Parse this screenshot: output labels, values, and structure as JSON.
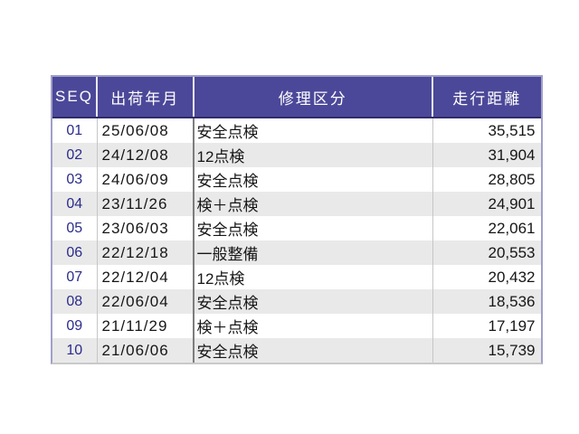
{
  "window": {
    "background": "#ffffff"
  },
  "table": {
    "title": "repair-history",
    "columns": [
      {
        "key": "seq",
        "label": "SEQ"
      },
      {
        "key": "ship_date",
        "label": "出荷年月"
      },
      {
        "key": "repair_type",
        "label": "修理区分"
      },
      {
        "key": "mileage",
        "label": "走行距離"
      }
    ],
    "rows": [
      {
        "seq": "01",
        "ship_date": "25/06/08",
        "repair_type": "安全点検",
        "mileage": "35,515"
      },
      {
        "seq": "02",
        "ship_date": "24/12/08",
        "repair_type": "12点検",
        "mileage": "31,904"
      },
      {
        "seq": "03",
        "ship_date": "24/06/09",
        "repair_type": "安全点検",
        "mileage": "28,805"
      },
      {
        "seq": "04",
        "ship_date": "23/11/26",
        "repair_type": "検＋点検",
        "mileage": "24,901"
      },
      {
        "seq": "05",
        "ship_date": "23/06/03",
        "repair_type": "安全点検",
        "mileage": "22,061"
      },
      {
        "seq": "06",
        "ship_date": "22/12/18",
        "repair_type": "一般整備",
        "mileage": "20,553"
      },
      {
        "seq": "07",
        "ship_date": "22/12/04",
        "repair_type": "12点検",
        "mileage": "20,432"
      },
      {
        "seq": "08",
        "ship_date": "22/06/04",
        "repair_type": "安全点検",
        "mileage": "18,536"
      },
      {
        "seq": "09",
        "ship_date": "21/11/29",
        "repair_type": "検＋点検",
        "mileage": "17,197"
      },
      {
        "seq": "10",
        "ship_date": "21/06/06",
        "repair_type": "安全点検",
        "mileage": "15,739"
      }
    ],
    "colors": {
      "header_bg": "#4c4899",
      "header_text": "#ffffff",
      "header_divider": "#e9e9f5",
      "header_bottom_border": "#2e2c6a",
      "outer_border": "#9fa0c9",
      "bottom_border": "#c9c9c9",
      "stripe_bg": "#e9e9e9",
      "row_bg": "#ffffff",
      "seq_text": "#2b2b8c",
      "body_text": "#161616",
      "column_divider": "#c6c6c6",
      "date_repair_divider": "#7d7d7d"
    }
  }
}
